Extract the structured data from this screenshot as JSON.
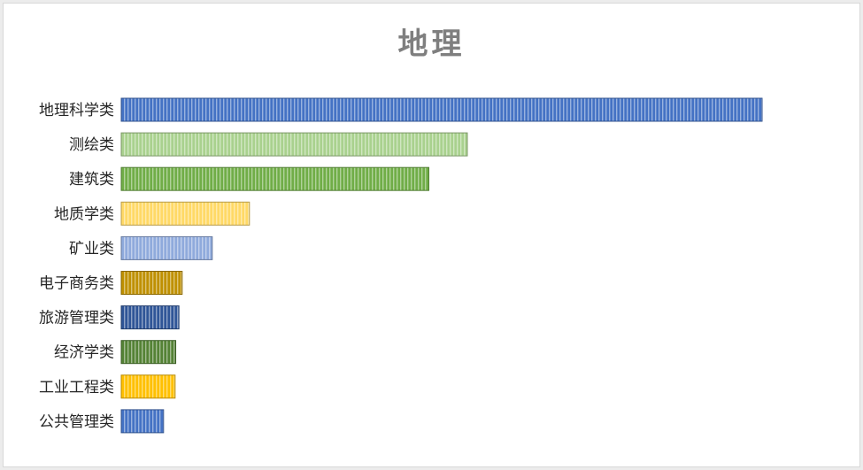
{
  "chart_data": {
    "type": "bar",
    "orientation": "horizontal",
    "title": "地理",
    "xlabel": "",
    "ylabel": "",
    "categories": [
      "地理科学类",
      "测绘类",
      "建筑类",
      "地质学类",
      "矿业类",
      "电子商务类",
      "旅游管理类",
      "经济学类",
      "工业工程类",
      "公共管理类"
    ],
    "values": [
      100,
      54,
      48,
      20,
      14.2,
      9.5,
      9,
      8.5,
      8.4,
      6.6
    ],
    "xlim": [
      0,
      100
    ],
    "grid": false,
    "legend": "none",
    "colors": [
      "#4472c4",
      "#a9d18e",
      "#70ad47",
      "#ffd966",
      "#8faadc",
      "#bf9000",
      "#2f5597",
      "#548235",
      "#ffc000",
      "#4472c4"
    ]
  }
}
